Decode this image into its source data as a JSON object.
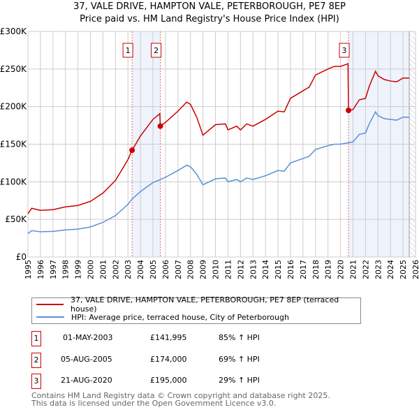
{
  "title": "37, VALE DRIVE, HAMPTON VALE, PETERBOROUGH, PE7 8EP",
  "subtitle": "Price paid vs. HM Land Registry's House Price Index (HPI)",
  "legend": {
    "property": "37, VALE DRIVE, HAMPTON VALE, PETERBOROUGH, PE7 8EP (terraced house)",
    "hpi": "HPI: Average price, terraced house, City of Peterborough"
  },
  "sales": [
    {
      "num": "1",
      "date": "01-MAY-2003",
      "price": "£141,995",
      "hpi": "85% ↑ HPI"
    },
    {
      "num": "2",
      "date": "05-AUG-2005",
      "price": "£174,000",
      "hpi": "69% ↑ HPI"
    },
    {
      "num": "3",
      "date": "21-AUG-2020",
      "price": "£195,000",
      "hpi": "29% ↑ HPI"
    }
  ],
  "footer": {
    "line1": "Contains HM Land Registry data © Crown copyright and database right 2025.",
    "line2": "This data is licensed under the Open Government Licence v3.0."
  },
  "chart_data": {
    "type": "line",
    "xlim": [
      1995,
      2026
    ],
    "ylim": [
      0,
      300000
    ],
    "yticks": [
      0,
      50000,
      100000,
      150000,
      200000,
      250000,
      300000
    ],
    "ytick_labels": [
      "£0",
      "£50K",
      "£100K",
      "£150K",
      "£200K",
      "£250K",
      "£300K"
    ],
    "xticks": [
      1995,
      1996,
      1997,
      1998,
      1999,
      2000,
      2001,
      2002,
      2003,
      2004,
      2005,
      2006,
      2007,
      2008,
      2009,
      2010,
      2011,
      2012,
      2013,
      2014,
      2015,
      2016,
      2017,
      2018,
      2019,
      2020,
      2021,
      2022,
      2023,
      2024,
      2025,
      2026
    ],
    "colors": {
      "property": "#cc0000",
      "hpi": "#5b8fd6",
      "shade": "#eef3fc"
    },
    "sale_points": [
      {
        "x": 2003.33,
        "y": 141995
      },
      {
        "x": 2005.59,
        "y": 174000
      },
      {
        "x": 2020.64,
        "y": 195000
      }
    ],
    "shaded_ranges": [
      [
        2003.33,
        2005.59
      ],
      [
        2020.64,
        2025.5
      ]
    ],
    "hatched_from": 2025.5,
    "series": [
      {
        "name": "property",
        "points": [
          [
            1995,
            57400
          ],
          [
            1995.3,
            64800
          ],
          [
            1996,
            62000
          ],
          [
            1997,
            62900
          ],
          [
            1998,
            66600
          ],
          [
            1999,
            68500
          ],
          [
            2000,
            74000
          ],
          [
            2001,
            85000
          ],
          [
            2002,
            101800
          ],
          [
            2003,
            129500
          ],
          [
            2003.33,
            141995
          ],
          [
            2004,
            161000
          ],
          [
            2005,
            183000
          ],
          [
            2005.55,
            190600
          ],
          [
            2005.59,
            174000
          ],
          [
            2006,
            179000
          ],
          [
            2007,
            194000
          ],
          [
            2007.7,
            206000
          ],
          [
            2008,
            203000
          ],
          [
            2008.5,
            186000
          ],
          [
            2009,
            162000
          ],
          [
            2009.5,
            169000
          ],
          [
            2010,
            176000
          ],
          [
            2010.8,
            177000
          ],
          [
            2011,
            169000
          ],
          [
            2011.7,
            174000
          ],
          [
            2012,
            169000
          ],
          [
            2012.5,
            177000
          ],
          [
            2013,
            174000
          ],
          [
            2014,
            183000
          ],
          [
            2015,
            194000
          ],
          [
            2015.5,
            193000
          ],
          [
            2016,
            211000
          ],
          [
            2017,
            221000
          ],
          [
            2017.5,
            226000
          ],
          [
            2018,
            242000
          ],
          [
            2019,
            250000
          ],
          [
            2019.5,
            253500
          ],
          [
            2020,
            253500
          ],
          [
            2020.6,
            257000
          ],
          [
            2020.64,
            195000
          ],
          [
            2021,
            196000
          ],
          [
            2021.5,
            209000
          ],
          [
            2022,
            211000
          ],
          [
            2022.3,
            227000
          ],
          [
            2022.8,
            247000
          ],
          [
            2023,
            241000
          ],
          [
            2023.5,
            236000
          ],
          [
            2024,
            234000
          ],
          [
            2024.5,
            233000
          ],
          [
            2025,
            238000
          ],
          [
            2025.5,
            238000
          ]
        ]
      },
      {
        "name": "hpi",
        "points": [
          [
            1995,
            31000
          ],
          [
            1995.3,
            35000
          ],
          [
            1996,
            33500
          ],
          [
            1997,
            34000
          ],
          [
            1998,
            36000
          ],
          [
            1999,
            37000
          ],
          [
            2000,
            40000
          ],
          [
            2001,
            46000
          ],
          [
            2002,
            55000
          ],
          [
            2003,
            70000
          ],
          [
            2003.33,
            77000
          ],
          [
            2004,
            87000
          ],
          [
            2005,
            99000
          ],
          [
            2005.59,
            103000
          ],
          [
            2006,
            106000
          ],
          [
            2007,
            115000
          ],
          [
            2007.7,
            122000
          ],
          [
            2008,
            120000
          ],
          [
            2008.5,
            110000
          ],
          [
            2009,
            96000
          ],
          [
            2009.5,
            100000
          ],
          [
            2010,
            104000
          ],
          [
            2010.8,
            105000
          ],
          [
            2011,
            100000
          ],
          [
            2011.7,
            103000
          ],
          [
            2012,
            100000
          ],
          [
            2012.5,
            105000
          ],
          [
            2013,
            103000
          ],
          [
            2014,
            108000
          ],
          [
            2015,
            115000
          ],
          [
            2015.5,
            114000
          ],
          [
            2016,
            125000
          ],
          [
            2017,
            131000
          ],
          [
            2017.5,
            134000
          ],
          [
            2018,
            143000
          ],
          [
            2019,
            148000
          ],
          [
            2019.5,
            150000
          ],
          [
            2020,
            150000
          ],
          [
            2020.64,
            152000
          ],
          [
            2021,
            153000
          ],
          [
            2021.5,
            163000
          ],
          [
            2022,
            165000
          ],
          [
            2022.3,
            177000
          ],
          [
            2022.8,
            193000
          ],
          [
            2023,
            188000
          ],
          [
            2023.5,
            184000
          ],
          [
            2024,
            183000
          ],
          [
            2024.5,
            182000
          ],
          [
            2025,
            186000
          ],
          [
            2025.5,
            186000
          ]
        ]
      }
    ]
  }
}
